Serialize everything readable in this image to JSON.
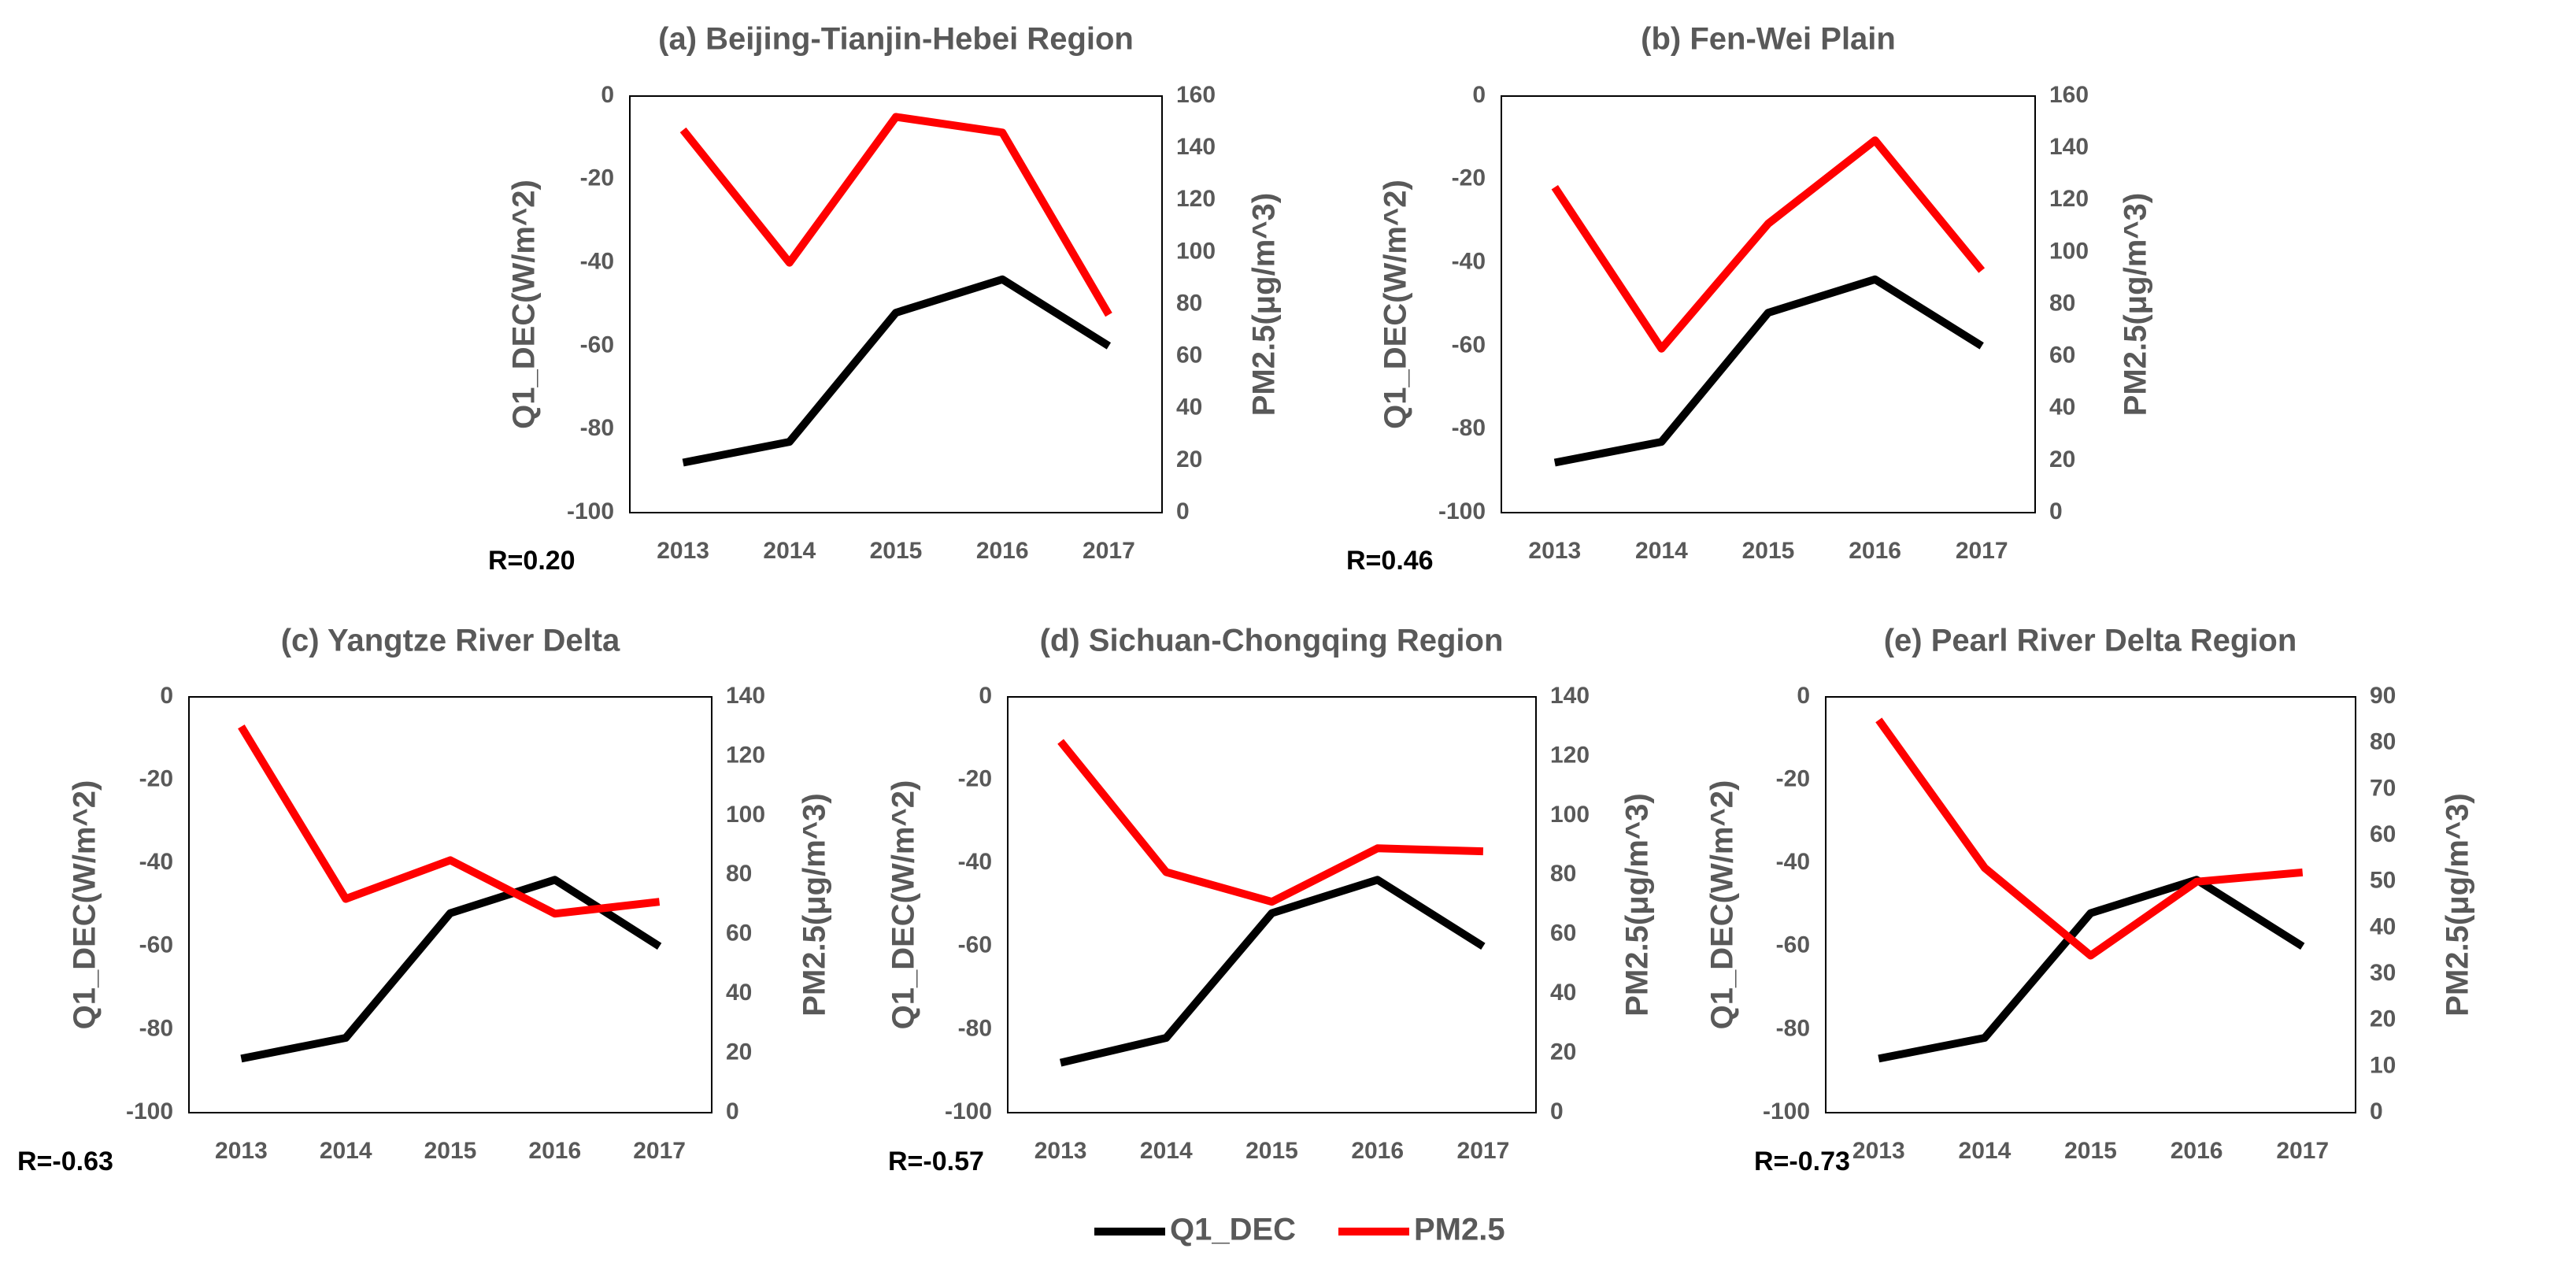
{
  "figure": {
    "legend_position": "bottom-center"
  },
  "legend": [
    {
      "label": "Q1_DEC",
      "color": "#000000"
    },
    {
      "label": "PM2.5",
      "color": "#ff0000"
    }
  ],
  "chart_data": [
    {
      "type": "line",
      "id": "a",
      "title": "(a) Beijing-Tianjin-Hebei Region",
      "categories": [
        "2013",
        "2014",
        "2015",
        "2016",
        "2017"
      ],
      "series": [
        {
          "name": "Q1_DEC",
          "axis": "left",
          "color": "#000000",
          "values": [
            -88,
            -83,
            -52,
            -44,
            -60
          ]
        },
        {
          "name": "PM2.5",
          "axis": "right",
          "color": "#ff0000",
          "values": [
            147,
            96,
            152,
            146,
            76
          ]
        }
      ],
      "ylabel_left": "Q1_DEC(W/m^2)",
      "ylabel_right": "PM2.5(μg/m^3)",
      "ylim_left": [
        -100,
        0
      ],
      "yticks_left": [
        0,
        -20,
        -40,
        -60,
        -80,
        -100
      ],
      "ylim_right": [
        0,
        160
      ],
      "yticks_right": [
        160,
        140,
        120,
        100,
        80,
        60,
        40,
        20,
        0
      ],
      "r_label": "R=0.20"
    },
    {
      "type": "line",
      "id": "b",
      "title": "(b) Fen-Wei Plain",
      "categories": [
        "2013",
        "2014",
        "2015",
        "2016",
        "2017"
      ],
      "series": [
        {
          "name": "Q1_DEC",
          "axis": "left",
          "color": "#000000",
          "values": [
            -88,
            -83,
            -52,
            -44,
            -60
          ]
        },
        {
          "name": "PM2.5",
          "axis": "right",
          "color": "#ff0000",
          "values": [
            125,
            63,
            111,
            143,
            93
          ]
        }
      ],
      "ylabel_left": "Q1_DEC(W/m^2)",
      "ylabel_right": "PM2.5(μg/m^3)",
      "ylim_left": [
        -100,
        0
      ],
      "yticks_left": [
        0,
        -20,
        -40,
        -60,
        -80,
        -100
      ],
      "ylim_right": [
        0,
        160
      ],
      "yticks_right": [
        160,
        140,
        120,
        100,
        80,
        60,
        40,
        20,
        0
      ],
      "r_label": "R=0.46"
    },
    {
      "type": "line",
      "id": "c",
      "title": "(c) Yangtze River Delta",
      "categories": [
        "2013",
        "2014",
        "2015",
        "2016",
        "2017"
      ],
      "series": [
        {
          "name": "Q1_DEC",
          "axis": "left",
          "color": "#000000",
          "values": [
            -87,
            -82,
            -52,
            -44,
            -60
          ]
        },
        {
          "name": "PM2.5",
          "axis": "right",
          "color": "#ff0000",
          "values": [
            130,
            72,
            85,
            67,
            71
          ]
        }
      ],
      "ylabel_left": "Q1_DEC(W/m^2)",
      "ylabel_right": "PM2.5(μg/m^3)",
      "ylim_left": [
        -100,
        0
      ],
      "yticks_left": [
        0,
        -20,
        -40,
        -60,
        -80,
        -100
      ],
      "ylim_right": [
        0,
        140
      ],
      "yticks_right": [
        140,
        120,
        100,
        80,
        60,
        40,
        20,
        0
      ],
      "r_label": "R=-0.63"
    },
    {
      "type": "line",
      "id": "d",
      "title": "(d) Sichuan-Chongqing Region",
      "categories": [
        "2013",
        "2014",
        "2015",
        "2016",
        "2017"
      ],
      "series": [
        {
          "name": "Q1_DEC",
          "axis": "left",
          "color": "#000000",
          "values": [
            -88,
            -82,
            -52,
            -44,
            -60
          ]
        },
        {
          "name": "PM2.5",
          "axis": "right",
          "color": "#ff0000",
          "values": [
            125,
            81,
            71,
            89,
            88
          ]
        }
      ],
      "ylabel_left": "Q1_DEC(W/m^2)",
      "ylabel_right": "PM2.5(μg/m^3)",
      "ylim_left": [
        -100,
        0
      ],
      "yticks_left": [
        0,
        -20,
        -40,
        -60,
        -80,
        -100
      ],
      "ylim_right": [
        0,
        140
      ],
      "yticks_right": [
        140,
        120,
        100,
        80,
        60,
        40,
        20,
        0
      ],
      "r_label": "R=-0.57"
    },
    {
      "type": "line",
      "id": "e",
      "title": "(e) Pearl River Delta Region",
      "categories": [
        "2013",
        "2014",
        "2015",
        "2016",
        "2017"
      ],
      "series": [
        {
          "name": "Q1_DEC",
          "axis": "left",
          "color": "#000000",
          "values": [
            -87,
            -82,
            -52,
            -44,
            -60
          ]
        },
        {
          "name": "PM2.5",
          "axis": "right",
          "color": "#ff0000",
          "values": [
            85,
            53,
            34,
            50,
            52
          ]
        }
      ],
      "ylabel_left": "Q1_DEC(W/m^2)",
      "ylabel_right": "PM2.5(μg/m^3)",
      "ylim_left": [
        -100,
        0
      ],
      "yticks_left": [
        0,
        -20,
        -40,
        -60,
        -80,
        -100
      ],
      "ylim_right": [
        0,
        90
      ],
      "yticks_right": [
        90,
        80,
        70,
        60,
        50,
        40,
        30,
        20,
        10,
        0
      ],
      "r_label": "R=-0.73"
    }
  ]
}
